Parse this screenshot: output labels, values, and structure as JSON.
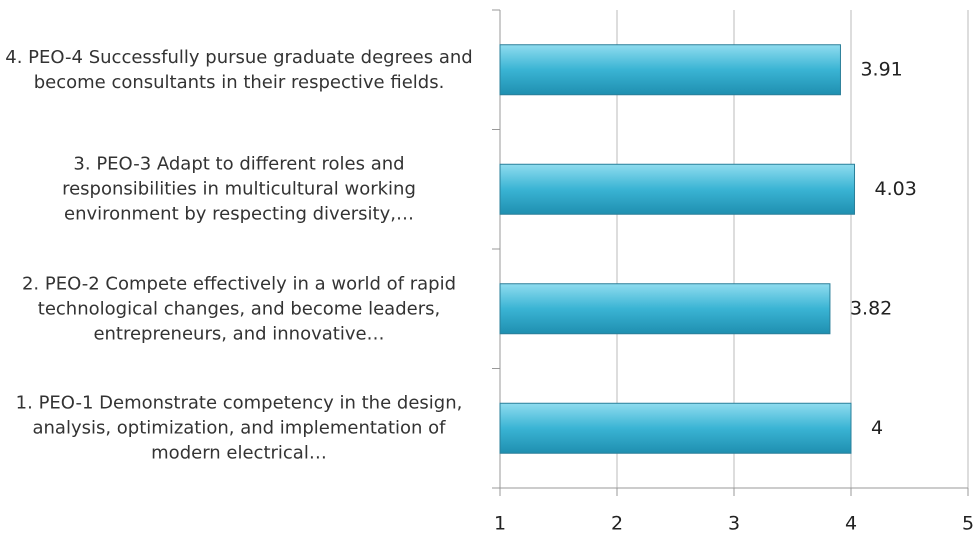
{
  "chart_data": {
    "type": "bar",
    "orientation": "horizontal",
    "categories": [
      "1. PEO-1 Demonstrate competency in the design, analysis, optimization, and implementation of modern electrical…",
      "2. PEO-2 Compete effectively in a world of rapid technological changes, and become leaders, entrepreneurs, and innovative…",
      "3. PEO-3 Adapt to different roles and responsibilities in multicultural working environment by respecting diversity,…",
      "4. PEO-4 Successfully pursue graduate degrees and become consultants in their respective fields."
    ],
    "values": [
      4,
      3.82,
      4.03,
      3.91
    ],
    "color": "#3ab4d4",
    "xlim": [
      1,
      5
    ],
    "xticks": [
      1,
      2,
      3,
      4,
      5
    ],
    "grid": true
  }
}
